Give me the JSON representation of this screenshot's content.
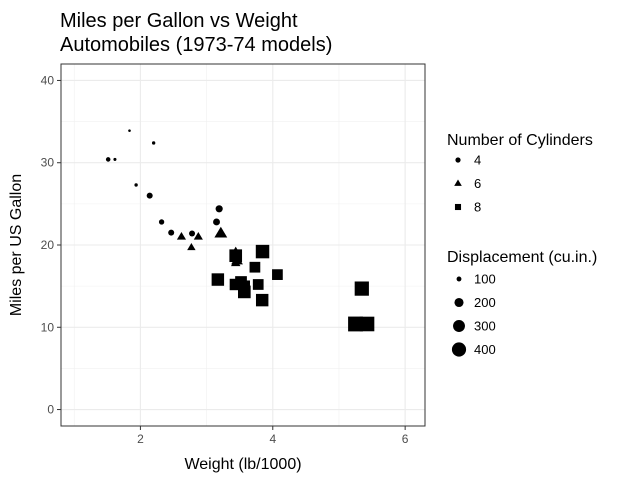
{
  "chart_data": {
    "type": "scatter",
    "title": "Miles per Gallon vs Weight\nAutomobiles (1973-74 models)",
    "title_lines": [
      "Miles per Gallon vs Weight",
      "Automobiles (1973-74 models)"
    ],
    "xlabel": "Weight (lb/1000)",
    "ylabel": "Miles per US Gallon",
    "xlim": [
      0.8,
      6.3
    ],
    "ylim": [
      -2,
      42
    ],
    "x_ticks": [
      2,
      4,
      6
    ],
    "y_ticks": [
      0,
      10,
      20,
      30,
      40
    ],
    "grid": true,
    "theme": "bw",
    "legend_position": "right",
    "shape_legend": {
      "title": "Number of Cylinders",
      "items": [
        {
          "label": "4",
          "shape": "circle"
        },
        {
          "label": "6",
          "shape": "triangle"
        },
        {
          "label": "8",
          "shape": "square"
        }
      ]
    },
    "size_legend": {
      "title": "Displacement (cu.in.)",
      "items": [
        {
          "label": "100",
          "value": 100
        },
        {
          "label": "200",
          "value": 200
        },
        {
          "label": "300",
          "value": 300
        },
        {
          "label": "400",
          "value": 400
        }
      ]
    },
    "points": [
      {
        "x": 2.62,
        "y": 21.0,
        "cyl": 6,
        "disp": 160
      },
      {
        "x": 2.875,
        "y": 21.0,
        "cyl": 6,
        "disp": 160
      },
      {
        "x": 2.32,
        "y": 22.8,
        "cyl": 4,
        "disp": 108
      },
      {
        "x": 3.215,
        "y": 21.4,
        "cyl": 6,
        "disp": 258
      },
      {
        "x": 3.44,
        "y": 18.7,
        "cyl": 8,
        "disp": 360
      },
      {
        "x": 3.46,
        "y": 18.1,
        "cyl": 6,
        "disp": 225
      },
      {
        "x": 3.57,
        "y": 14.3,
        "cyl": 8,
        "disp": 360
      },
      {
        "x": 3.19,
        "y": 24.4,
        "cyl": 4,
        "disp": 146.7
      },
      {
        "x": 3.15,
        "y": 22.8,
        "cyl": 4,
        "disp": 140.8
      },
      {
        "x": 3.44,
        "y": 19.2,
        "cyl": 6,
        "disp": 167.6
      },
      {
        "x": 3.44,
        "y": 17.8,
        "cyl": 6,
        "disp": 167.6
      },
      {
        "x": 4.07,
        "y": 16.4,
        "cyl": 8,
        "disp": 275.8
      },
      {
        "x": 3.73,
        "y": 17.3,
        "cyl": 8,
        "disp": 275.8
      },
      {
        "x": 3.78,
        "y": 15.2,
        "cyl": 8,
        "disp": 275.8
      },
      {
        "x": 5.25,
        "y": 10.4,
        "cyl": 8,
        "disp": 472
      },
      {
        "x": 5.424,
        "y": 10.4,
        "cyl": 8,
        "disp": 460
      },
      {
        "x": 5.345,
        "y": 14.7,
        "cyl": 8,
        "disp": 440
      },
      {
        "x": 2.2,
        "y": 32.4,
        "cyl": 4,
        "disp": 78.7
      },
      {
        "x": 1.615,
        "y": 30.4,
        "cyl": 4,
        "disp": 75.7
      },
      {
        "x": 1.835,
        "y": 33.9,
        "cyl": 4,
        "disp": 71.1
      },
      {
        "x": 2.465,
        "y": 21.5,
        "cyl": 4,
        "disp": 120.1
      },
      {
        "x": 3.52,
        "y": 15.5,
        "cyl": 8,
        "disp": 318
      },
      {
        "x": 3.435,
        "y": 15.2,
        "cyl": 8,
        "disp": 304
      },
      {
        "x": 3.84,
        "y": 13.3,
        "cyl": 8,
        "disp": 350
      },
      {
        "x": 3.845,
        "y": 19.2,
        "cyl": 8,
        "disp": 400
      },
      {
        "x": 1.935,
        "y": 27.3,
        "cyl": 4,
        "disp": 79
      },
      {
        "x": 2.14,
        "y": 26.0,
        "cyl": 4,
        "disp": 120.3
      },
      {
        "x": 1.513,
        "y": 30.4,
        "cyl": 4,
        "disp": 95.1
      },
      {
        "x": 3.17,
        "y": 15.8,
        "cyl": 8,
        "disp": 351
      },
      {
        "x": 2.77,
        "y": 19.7,
        "cyl": 6,
        "disp": 145
      },
      {
        "x": 3.57,
        "y": 15.0,
        "cyl": 8,
        "disp": 301
      },
      {
        "x": 2.78,
        "y": 21.4,
        "cyl": 4,
        "disp": 121
      }
    ]
  }
}
